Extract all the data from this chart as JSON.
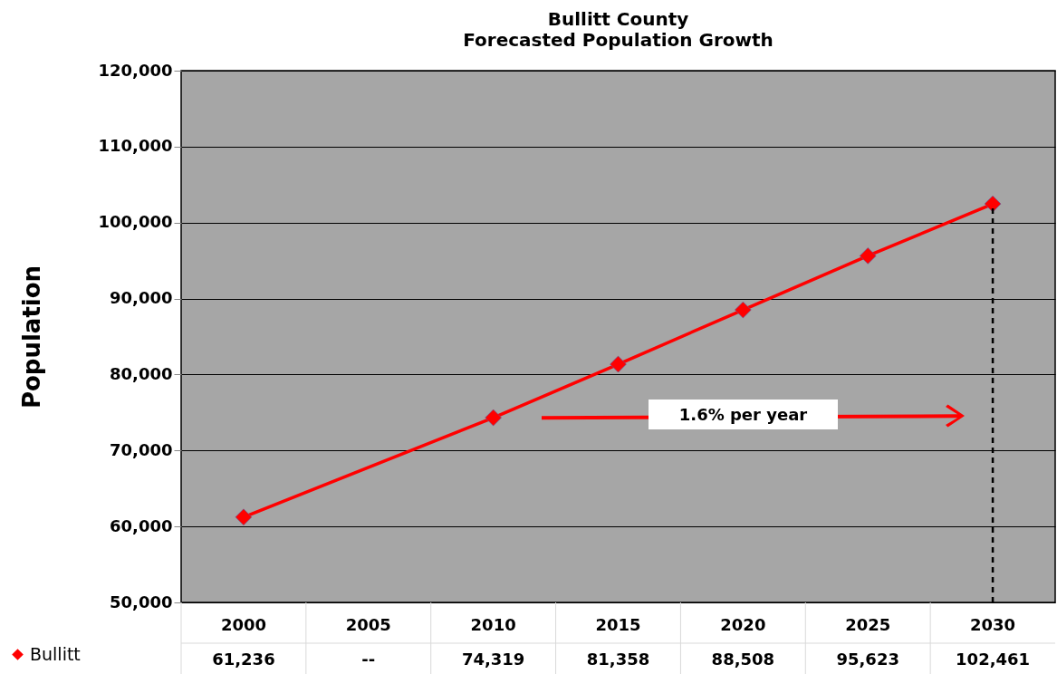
{
  "chart_data": {
    "type": "line",
    "title": "Bullitt County",
    "subtitle": "Forecasted Population Growth",
    "ylabel": "Population",
    "categories": [
      "2000",
      "2005",
      "2010",
      "2015",
      "2020",
      "2025",
      "2030"
    ],
    "series": [
      {
        "name": "Bullitt",
        "color": "#ff0000",
        "values": [
          61236,
          null,
          74319,
          81358,
          88508,
          95623,
          102461
        ],
        "value_labels": [
          "61,236",
          "--",
          "74,319",
          "81,358",
          "88,508",
          "95,623",
          "102,461"
        ]
      }
    ],
    "ylim": [
      50000,
      120000
    ],
    "yticks": [
      {
        "value": 50000,
        "label": "50,000"
      },
      {
        "value": 60000,
        "label": "60,000"
      },
      {
        "value": 70000,
        "label": "70,000"
      },
      {
        "value": 80000,
        "label": "80,000"
      },
      {
        "value": 90000,
        "label": "90,000"
      },
      {
        "value": 100000,
        "label": "100,000"
      },
      {
        "value": 110000,
        "label": "110,000"
      },
      {
        "value": 120000,
        "label": "120,000"
      }
    ],
    "grid": "y",
    "legend": "bottom left",
    "marker": "diamond",
    "line_style": "solid",
    "ref_lines": [
      {
        "axis": "x",
        "value": "2030",
        "color": "#000000",
        "line_style": "dashed"
      }
    ],
    "annotations": [
      "1.6% per year"
    ]
  }
}
